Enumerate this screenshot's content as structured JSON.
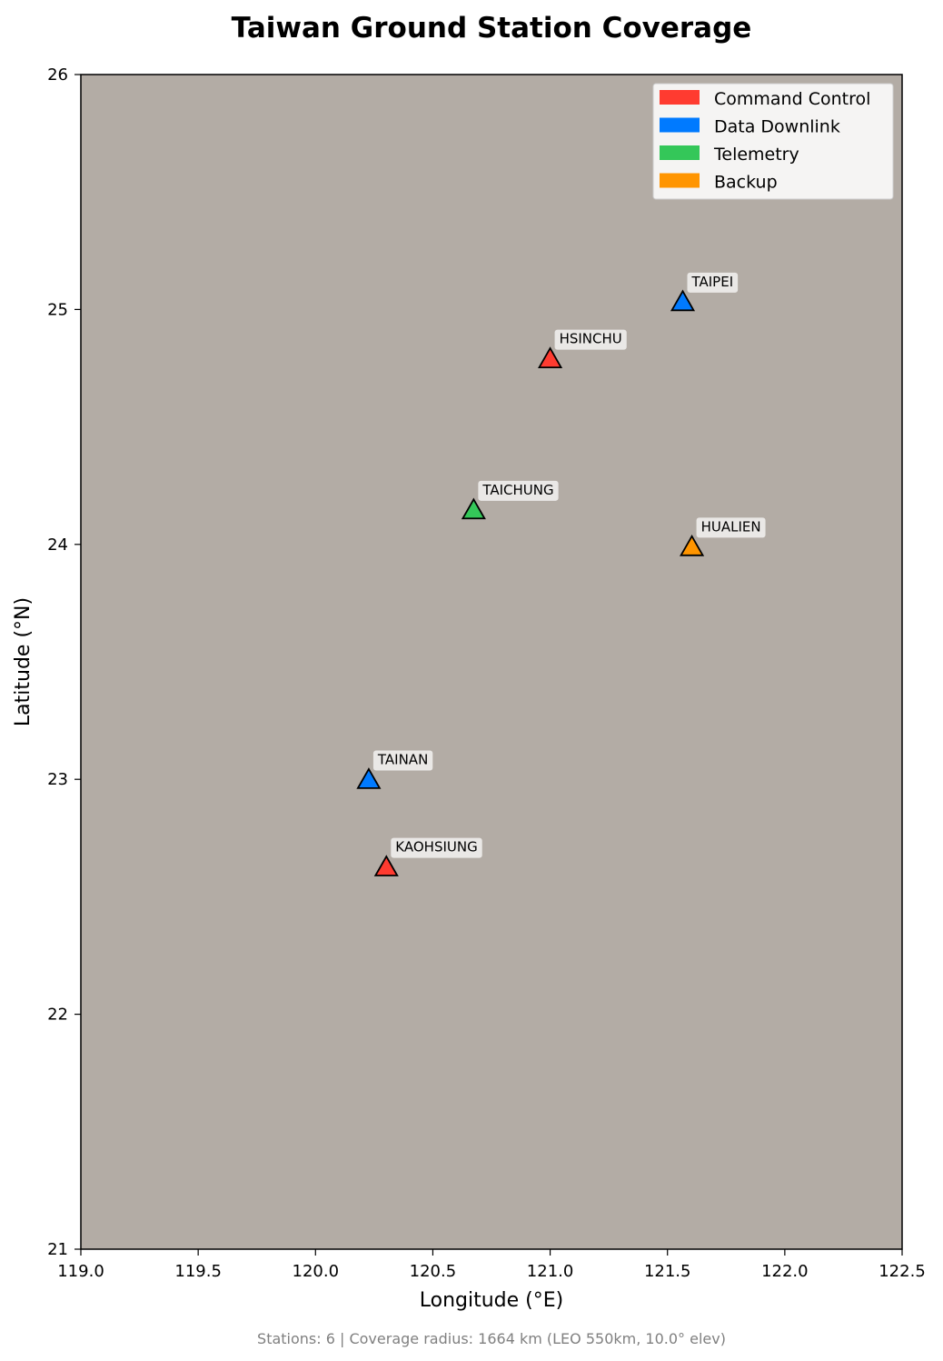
{
  "chart_data": {
    "type": "scatter",
    "title": "Taiwan Ground Station Coverage",
    "xlabel": "Longitude (°E)",
    "ylabel": "Latitude (°N)",
    "xlim": [
      119.0,
      122.5
    ],
    "ylim": [
      21,
      26
    ],
    "xticks": [
      "119.0",
      "119.5",
      "120.0",
      "120.5",
      "121.0",
      "121.5",
      "122.0",
      "122.5"
    ],
    "yticks": [
      "21",
      "22",
      "23",
      "24",
      "25",
      "26"
    ],
    "grid": false,
    "legend_position": "top-right",
    "background_color": "#b3aca5",
    "legend": [
      {
        "role": "command_control",
        "label": "Command Control",
        "color": "#ff3b30"
      },
      {
        "role": "data_downlink",
        "label": "Data Downlink",
        "color": "#007aff"
      },
      {
        "role": "telemetry",
        "label": "Telemetry",
        "color": "#34c759"
      },
      {
        "role": "backup",
        "label": "Backup",
        "color": "#ff9500"
      }
    ],
    "stations": [
      {
        "name": "TAIPEI",
        "lon": 121.565,
        "lat": 25.033,
        "role": "data_downlink"
      },
      {
        "name": "HSINCHU",
        "lon": 121.0,
        "lat": 24.79,
        "role": "command_control"
      },
      {
        "name": "TAICHUNG",
        "lon": 120.674,
        "lat": 24.147,
        "role": "telemetry"
      },
      {
        "name": "HUALIEN",
        "lon": 121.604,
        "lat": 23.99,
        "role": "backup"
      },
      {
        "name": "TAINAN",
        "lon": 120.227,
        "lat": 22.999,
        "role": "data_downlink"
      },
      {
        "name": "KAOHSIUNG",
        "lon": 120.302,
        "lat": 22.627,
        "role": "command_control"
      }
    ],
    "footer": "Stations: 6 | Coverage radius: 1664 km (LEO 550km, 10.0° elev)"
  }
}
